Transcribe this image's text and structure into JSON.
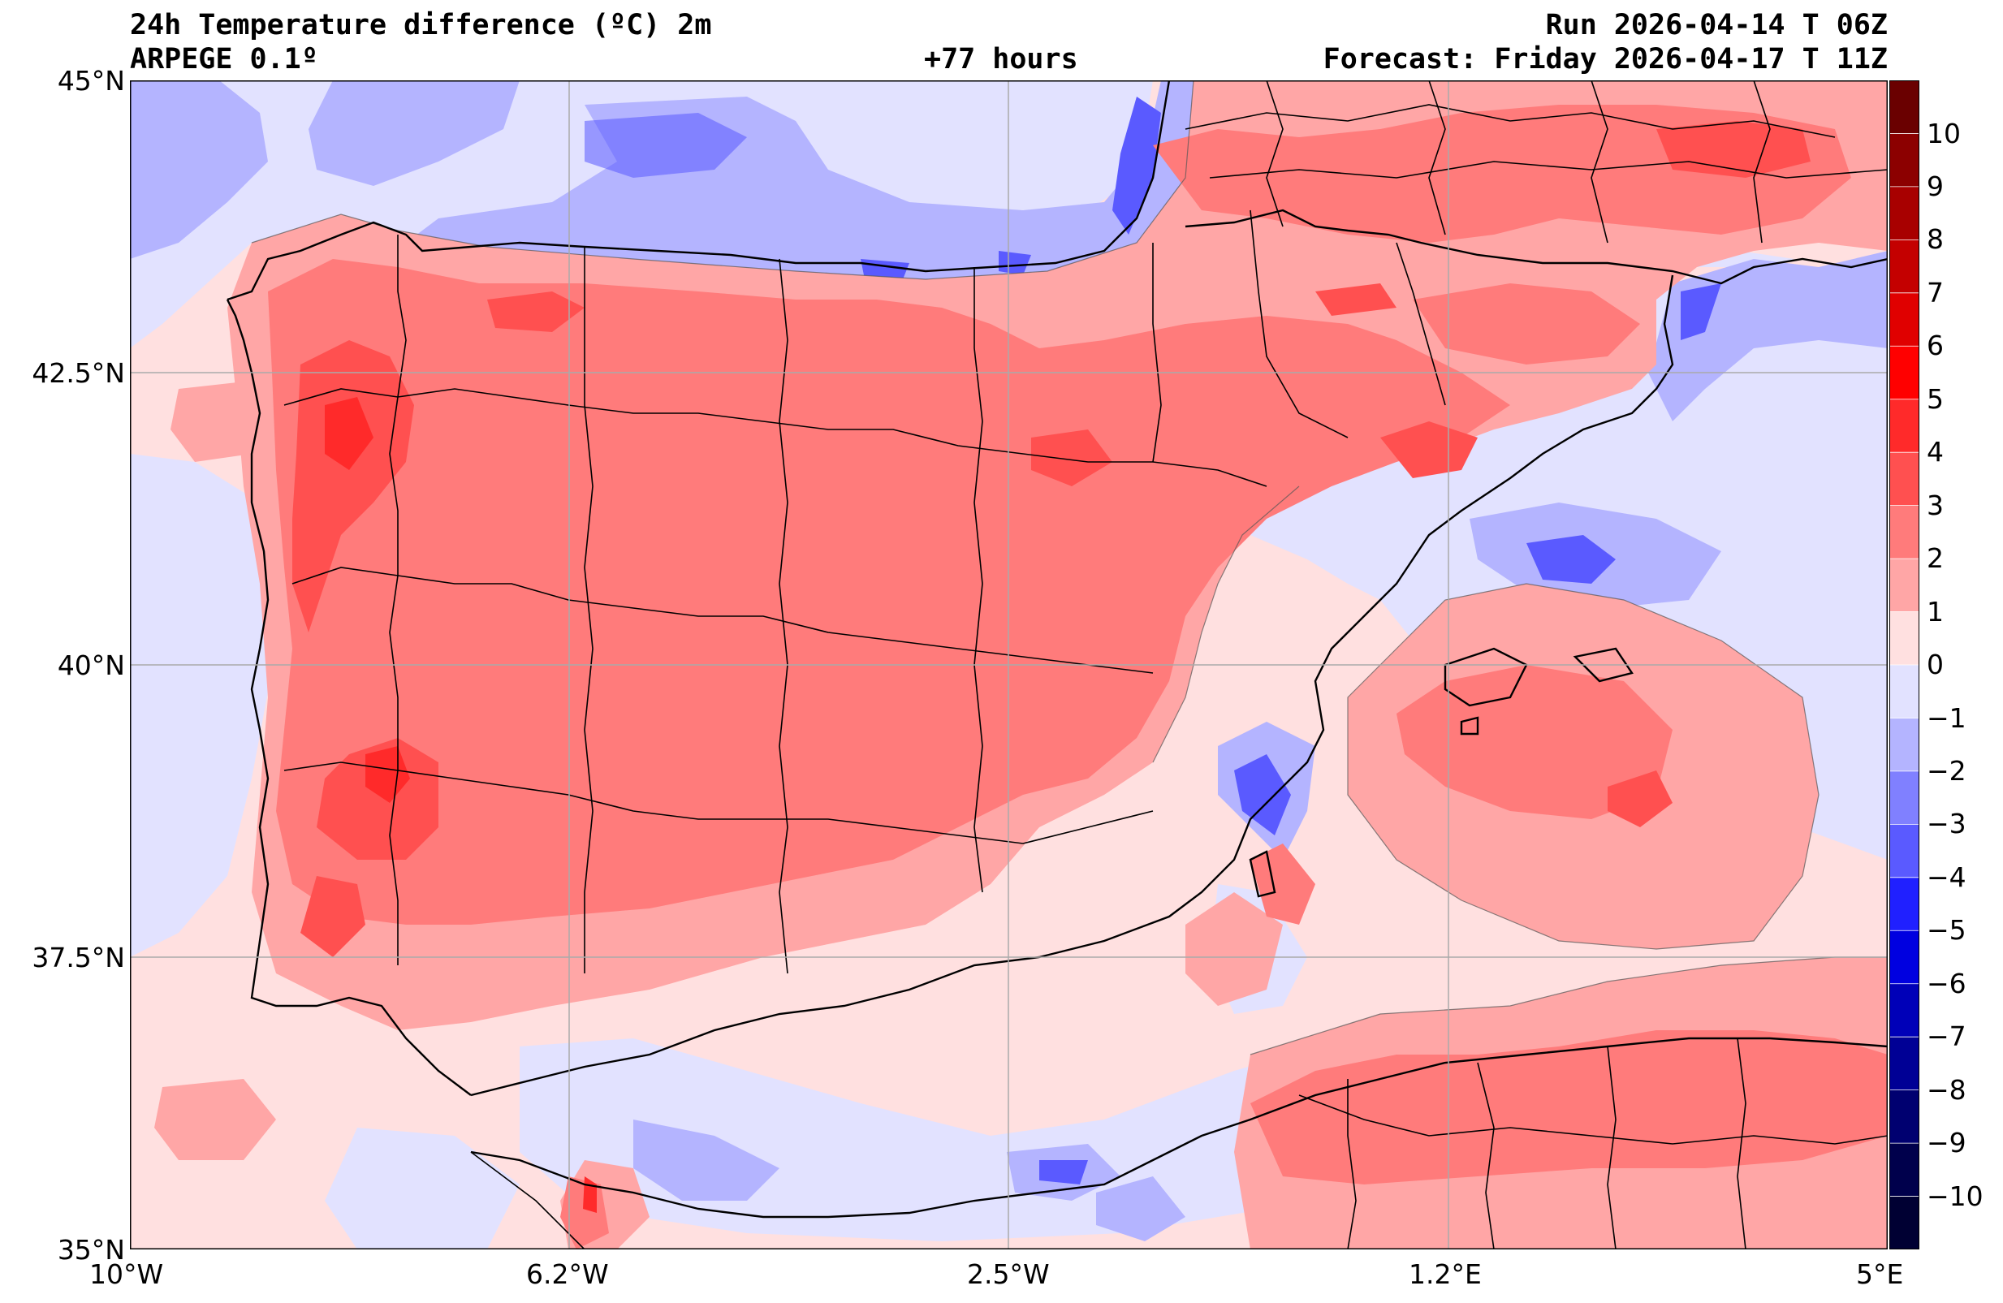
{
  "header": {
    "title": "24h Temperature difference (ºC) 2m",
    "model": "ARPEGE 0.1º",
    "lead_time": "+77 hours",
    "run": "Run 2026-04-14 T 06Z",
    "forecast": "Forecast: Friday 2026-04-17 T 11Z"
  },
  "map": {
    "lat_ticks": [
      "45°N",
      "42.5°N",
      "40°N",
      "37.5°N",
      "35°N"
    ],
    "lon_ticks": [
      "10°W",
      "6.2°W",
      "2.5°W",
      "1.2°E",
      "5°E"
    ],
    "lat_range": [
      35,
      45
    ],
    "lon_range": [
      -10,
      5
    ],
    "grid": true,
    "sea_anomaly_note_free": true
  },
  "colorbar": {
    "labels": [
      "10",
      "9",
      "8",
      "7",
      "6",
      "5",
      "4",
      "3",
      "2",
      "1",
      "0",
      "−1",
      "−2",
      "−3",
      "−4",
      "−5",
      "−6",
      "−7",
      "−8",
      "−9",
      "−10"
    ],
    "levels_top_to_bottom": [
      {
        "range": "10 to 11",
        "color": "#6a0000"
      },
      {
        "range": "9 to 10",
        "color": "#8c0000"
      },
      {
        "range": "8 to 9",
        "color": "#a80000"
      },
      {
        "range": "7 to 8",
        "color": "#c40000"
      },
      {
        "range": "6 to 7",
        "color": "#e00000"
      },
      {
        "range": "5 to 6",
        "color": "#ff0000"
      },
      {
        "range": "4 to 5",
        "color": "#ff2a2a"
      },
      {
        "range": "3 to 4",
        "color": "#ff5050"
      },
      {
        "range": "2 to 3",
        "color": "#ff7b7b"
      },
      {
        "range": "1 to 2",
        "color": "#ffa6a6"
      },
      {
        "range": "0 to 1",
        "color": "#ffe0e0"
      },
      {
        "range": "-1 to 0",
        "color": "#e2e2ff"
      },
      {
        "range": "-2 to -1",
        "color": "#b4b4ff"
      },
      {
        "range": "-3 to -2",
        "color": "#8080ff"
      },
      {
        "range": "-4 to -3",
        "color": "#5a5aff"
      },
      {
        "range": "-5 to -4",
        "color": "#2020ff"
      },
      {
        "range": "-6 to -5",
        "color": "#0000e0"
      },
      {
        "range": "-7 to -6",
        "color": "#0000b8"
      },
      {
        "range": "-8 to -7",
        "color": "#000095"
      },
      {
        "range": "-9 to -8",
        "color": "#000070"
      },
      {
        "range": "-10 to -9",
        "color": "#00004c"
      },
      {
        "range": "-11 to -10",
        "color": "#000033"
      }
    ]
  }
}
